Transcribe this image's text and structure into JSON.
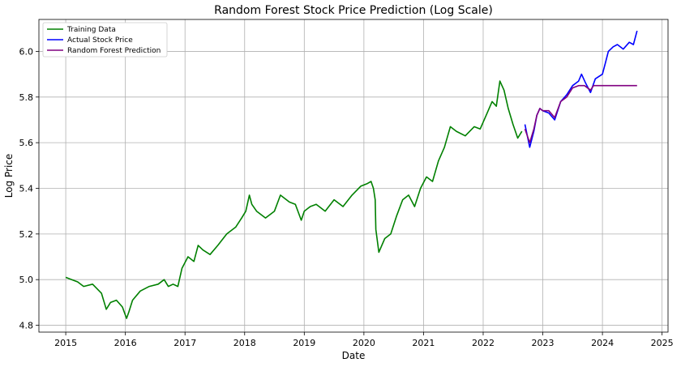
{
  "chart_data": {
    "type": "line",
    "title": "Random Forest Stock Price Prediction (Log Scale)",
    "xlabel": "Date",
    "ylabel": "Log Price",
    "xlim": [
      2014.55,
      2025.1
    ],
    "ylim": [
      4.77,
      6.14
    ],
    "x_ticks": [
      2015,
      2016,
      2017,
      2018,
      2019,
      2020,
      2021,
      2022,
      2023,
      2024,
      2025
    ],
    "y_ticks": [
      4.8,
      5.0,
      5.2,
      5.4,
      5.6,
      5.8,
      6.0
    ],
    "y_tick_labels": [
      "4.8",
      "5.0",
      "5.2",
      "5.4",
      "5.6",
      "5.8",
      "6.0"
    ],
    "grid": true,
    "legend_position": "top-left",
    "series": [
      {
        "name": "Training Data",
        "color": "#008000",
        "x": [
          2015.0,
          2015.1,
          2015.2,
          2015.3,
          2015.45,
          2015.6,
          2015.68,
          2015.75,
          2015.85,
          2015.95,
          2016.02,
          2016.06,
          2016.12,
          2016.25,
          2016.4,
          2016.55,
          2016.65,
          2016.72,
          2016.8,
          2016.88,
          2016.95,
          2017.05,
          2017.15,
          2017.22,
          2017.3,
          2017.42,
          2017.55,
          2017.7,
          2017.85,
          2017.95,
          2018.02,
          2018.08,
          2018.12,
          2018.2,
          2018.35,
          2018.5,
          2018.6,
          2018.75,
          2018.85,
          2018.95,
          2019.0,
          2019.1,
          2019.2,
          2019.35,
          2019.5,
          2019.65,
          2019.8,
          2019.95,
          2020.05,
          2020.12,
          2020.16,
          2020.19,
          2020.2,
          2020.25,
          2020.35,
          2020.45,
          2020.55,
          2020.65,
          2020.75,
          2020.85,
          2020.95,
          2021.05,
          2021.15,
          2021.25,
          2021.35,
          2021.45,
          2021.55,
          2021.7,
          2021.85,
          2021.95,
          2022.05,
          2022.15,
          2022.22,
          2022.28,
          2022.35,
          2022.42,
          2022.5,
          2022.58,
          2022.65
        ],
        "y": [
          5.01,
          5.0,
          4.99,
          4.97,
          4.98,
          4.94,
          4.87,
          4.9,
          4.91,
          4.88,
          4.83,
          4.86,
          4.91,
          4.95,
          4.97,
          4.98,
          5.0,
          4.97,
          4.98,
          4.97,
          5.05,
          5.1,
          5.08,
          5.15,
          5.13,
          5.11,
          5.15,
          5.2,
          5.23,
          5.27,
          5.3,
          5.37,
          5.33,
          5.3,
          5.27,
          5.3,
          5.37,
          5.34,
          5.33,
          5.26,
          5.3,
          5.32,
          5.33,
          5.3,
          5.35,
          5.32,
          5.37,
          5.41,
          5.42,
          5.43,
          5.4,
          5.35,
          5.22,
          5.12,
          5.18,
          5.2,
          5.28,
          5.35,
          5.37,
          5.32,
          5.4,
          5.45,
          5.43,
          5.52,
          5.58,
          5.67,
          5.65,
          5.63,
          5.67,
          5.66,
          5.72,
          5.78,
          5.76,
          5.87,
          5.83,
          5.75,
          5.68,
          5.62,
          5.65
        ]
      },
      {
        "name": "Actual Stock Price",
        "color": "#0000ff",
        "x": [
          2022.7,
          2022.78,
          2022.85,
          2022.9,
          2022.95,
          2023.0,
          2023.1,
          2023.2,
          2023.3,
          2023.4,
          2023.5,
          2023.6,
          2023.65,
          2023.72,
          2023.8,
          2023.88,
          2024.0,
          2024.05,
          2024.1,
          2024.18,
          2024.25,
          2024.35,
          2024.45,
          2024.52,
          2024.58
        ],
        "y": [
          5.68,
          5.58,
          5.65,
          5.72,
          5.75,
          5.74,
          5.73,
          5.7,
          5.78,
          5.81,
          5.85,
          5.87,
          5.9,
          5.86,
          5.82,
          5.88,
          5.9,
          5.95,
          6.0,
          6.02,
          6.03,
          6.01,
          6.04,
          6.03,
          6.09
        ]
      },
      {
        "name": "Random Forest Prediction",
        "color": "#800080",
        "x": [
          2022.7,
          2022.78,
          2022.85,
          2022.9,
          2022.95,
          2023.0,
          2023.1,
          2023.2,
          2023.3,
          2023.4,
          2023.5,
          2023.6,
          2023.7,
          2023.8,
          2023.85,
          2023.95,
          2024.2,
          2024.58
        ],
        "y": [
          5.66,
          5.6,
          5.66,
          5.72,
          5.75,
          5.74,
          5.74,
          5.71,
          5.78,
          5.8,
          5.84,
          5.85,
          5.85,
          5.83,
          5.85,
          5.85,
          5.85,
          5.85
        ]
      }
    ]
  }
}
